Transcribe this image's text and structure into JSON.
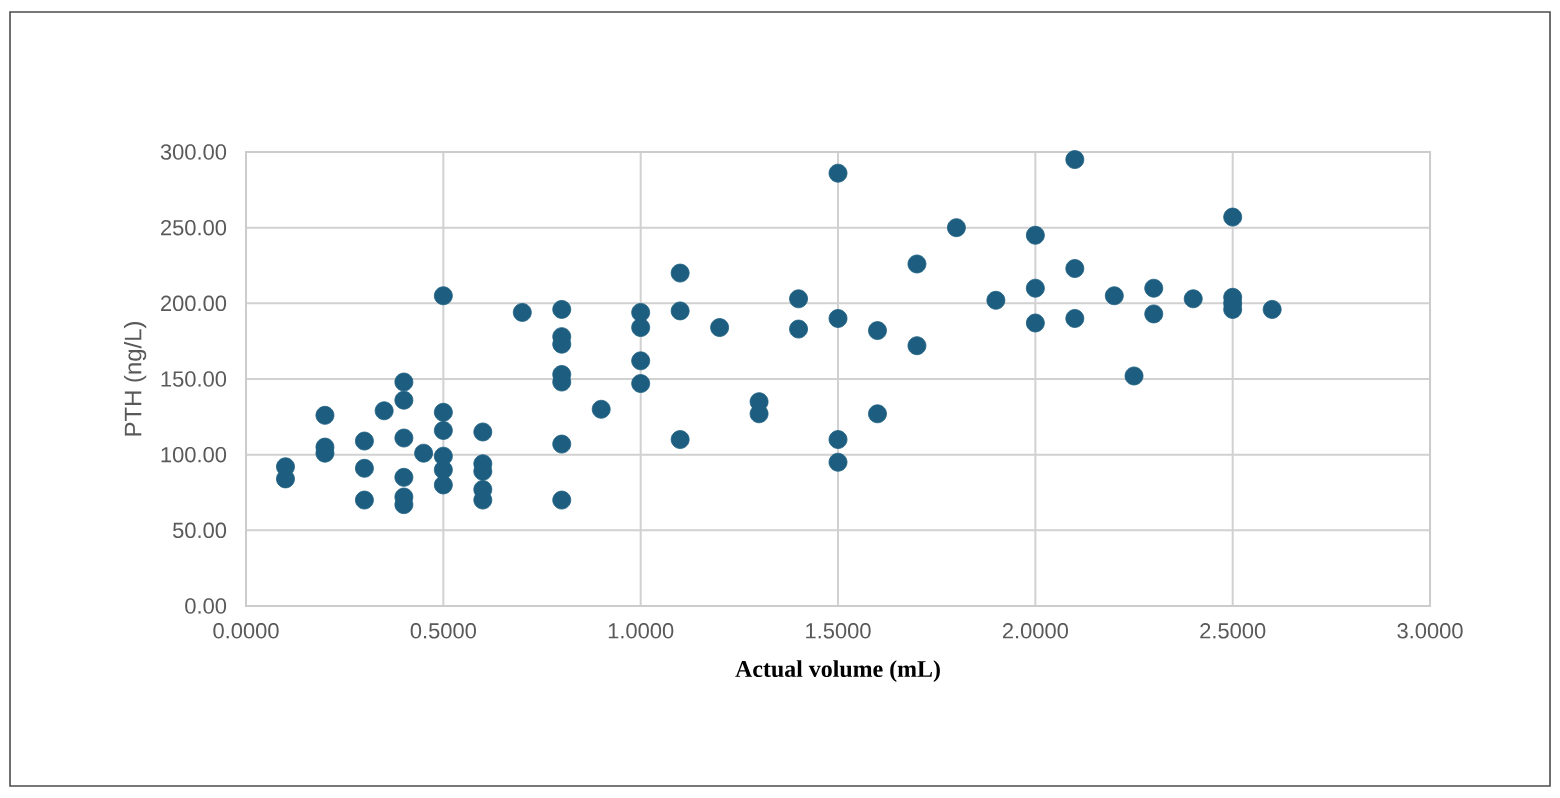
{
  "chart_data": {
    "type": "scatter",
    "xlabel": "Actual volume (mL)",
    "ylabel": "PTH (ng/L)",
    "x": [
      0.1,
      0.1,
      0.2,
      0.2,
      0.2,
      0.3,
      0.3,
      0.3,
      0.35,
      0.4,
      0.4,
      0.4,
      0.4,
      0.4,
      0.4,
      0.45,
      0.5,
      0.5,
      0.5,
      0.5,
      0.5,
      0.5,
      0.6,
      0.6,
      0.6,
      0.6,
      0.6,
      0.7,
      0.8,
      0.8,
      0.8,
      0.8,
      0.8,
      0.8,
      0.8,
      0.9,
      1.0,
      1.0,
      1.0,
      1.0,
      1.1,
      1.1,
      1.1,
      1.2,
      1.3,
      1.3,
      1.4,
      1.4,
      1.5,
      1.5,
      1.5,
      1.5,
      1.6,
      1.6,
      1.7,
      1.7,
      1.8,
      1.9,
      2.0,
      2.0,
      2.0,
      2.1,
      2.1,
      2.1,
      2.2,
      2.25,
      2.3,
      2.3,
      2.4,
      2.5,
      2.5,
      2.5,
      2.5,
      2.6
    ],
    "values": [
      92,
      84,
      126,
      105,
      101,
      109,
      91,
      70,
      129,
      148,
      136,
      111,
      85,
      72,
      67,
      101,
      205,
      128,
      116,
      99,
      90,
      80,
      115,
      94,
      89,
      77,
      70,
      194,
      196,
      178,
      173,
      153,
      148,
      107,
      70,
      130,
      194,
      184,
      162,
      147,
      220,
      195,
      110,
      184,
      135,
      127,
      203,
      183,
      286,
      190,
      110,
      95,
      182,
      127,
      226,
      172,
      250,
      202,
      245,
      210,
      187,
      295,
      223,
      190,
      205,
      152,
      210,
      193,
      203,
      257,
      204,
      200,
      196,
      196
    ],
    "color": "#1d5e80",
    "marker": "circle",
    "grid": true,
    "xlim": [
      0,
      3
    ],
    "ylim": [
      0,
      300
    ],
    "xticks": [
      {
        "value": 0,
        "label": "0.0000"
      },
      {
        "value": 0.5,
        "label": "0.5000"
      },
      {
        "value": 1,
        "label": "1.0000"
      },
      {
        "value": 1.5,
        "label": "1.5000"
      },
      {
        "value": 2,
        "label": "2.0000"
      },
      {
        "value": 2.5,
        "label": "2.5000"
      },
      {
        "value": 3,
        "label": "3.0000"
      }
    ],
    "yticks": [
      {
        "value": 0,
        "label": "0.00"
      },
      {
        "value": 50,
        "label": "50.00"
      },
      {
        "value": 100,
        "label": "100.00"
      },
      {
        "value": 150,
        "label": "150.00"
      },
      {
        "value": 200,
        "label": "200.00"
      },
      {
        "value": 250,
        "label": "250.00"
      },
      {
        "value": 300,
        "label": "300.00"
      }
    ]
  }
}
